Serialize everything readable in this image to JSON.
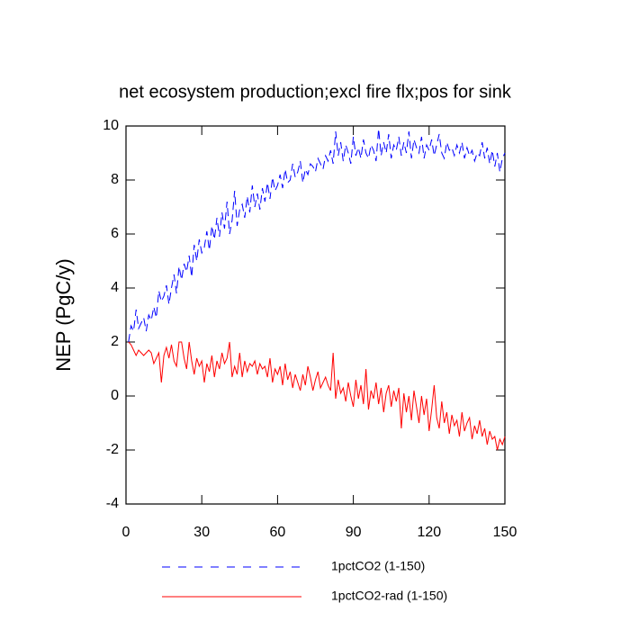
{
  "chart_data": {
    "type": "line",
    "title": "net ecosystem production;excl fire flx;pos for sink",
    "y_label": "NEP  (PgC/y)",
    "xlim": [
      0,
      150
    ],
    "xticks": [
      0,
      30,
      60,
      90,
      120,
      150
    ],
    "ylim": [
      -4,
      10
    ],
    "yticks": [
      -4,
      -2,
      0,
      2,
      4,
      6,
      8,
      10
    ],
    "x": [
      1,
      2,
      3,
      4,
      5,
      6,
      7,
      8,
      9,
      10,
      11,
      12,
      13,
      14,
      15,
      16,
      17,
      18,
      19,
      20,
      21,
      22,
      23,
      24,
      25,
      26,
      27,
      28,
      29,
      30,
      31,
      32,
      33,
      34,
      35,
      36,
      37,
      38,
      39,
      40,
      41,
      42,
      43,
      44,
      45,
      46,
      47,
      48,
      49,
      50,
      51,
      52,
      53,
      54,
      55,
      56,
      57,
      58,
      59,
      60,
      61,
      62,
      63,
      64,
      65,
      66,
      67,
      68,
      69,
      70,
      71,
      72,
      73,
      74,
      75,
      76,
      77,
      78,
      79,
      80,
      81,
      82,
      83,
      84,
      85,
      86,
      87,
      88,
      89,
      90,
      91,
      92,
      93,
      94,
      95,
      96,
      97,
      98,
      99,
      100,
      101,
      102,
      103,
      104,
      105,
      106,
      107,
      108,
      109,
      110,
      111,
      112,
      113,
      114,
      115,
      116,
      117,
      118,
      119,
      120,
      121,
      122,
      123,
      124,
      125,
      126,
      127,
      128,
      129,
      130,
      131,
      132,
      133,
      134,
      135,
      136,
      137,
      138,
      139,
      140,
      141,
      142,
      143,
      144,
      145,
      146,
      147,
      148,
      149,
      150
    ],
    "series": [
      {
        "name": "1pctCO2 (1-150)",
        "color": "#0000ff",
        "line_style": "dashed",
        "values": [
          2.0,
          2.6,
          2.4,
          3.2,
          2.5,
          2.7,
          2.9,
          2.4,
          3.0,
          2.8,
          3.3,
          2.9,
          3.9,
          3.5,
          3.7,
          4.1,
          3.4,
          4.0,
          4.5,
          3.8,
          4.8,
          4.3,
          4.9,
          4.6,
          5.2,
          4.4,
          5.6,
          5.0,
          5.8,
          5.3,
          5.5,
          6.1,
          5.4,
          6.3,
          5.8,
          6.6,
          5.9,
          6.8,
          6.2,
          7.2,
          6.0,
          6.5,
          7.6,
          6.3,
          6.9,
          7.1,
          6.6,
          7.4,
          6.8,
          7.8,
          7.0,
          7.5,
          6.9,
          7.7,
          7.2,
          7.9,
          7.3,
          8.1,
          7.6,
          7.8,
          8.2,
          7.7,
          8.4,
          7.9,
          8.0,
          8.6,
          8.1,
          8.3,
          8.7,
          7.9,
          8.4,
          8.2,
          8.6,
          8.5,
          8.3,
          8.8,
          8.6,
          8.4,
          8.9,
          8.7,
          9.1,
          8.6,
          9.8,
          8.9,
          9.4,
          8.7,
          9.3,
          9.0,
          8.6,
          9.6,
          8.9,
          9.2,
          8.8,
          9.5,
          9.0,
          8.8,
          9.3,
          9.1,
          8.7,
          9.9,
          8.9,
          9.4,
          9.0,
          9.7,
          8.8,
          9.3,
          9.1,
          9.6,
          8.9,
          9.4,
          9.0,
          9.8,
          8.8,
          9.5,
          9.2,
          9.0,
          9.6,
          8.8,
          9.3,
          9.1,
          9.5,
          8.9,
          9.3,
          9.7,
          9.0,
          8.8,
          9.4,
          9.1,
          9.2,
          8.9,
          9.3,
          9.0,
          9.4,
          8.8,
          9.2,
          8.9,
          9.1,
          8.7,
          9.0,
          8.9,
          9.4,
          8.8,
          9.2,
          8.6,
          9.1,
          8.5,
          9.0,
          8.3,
          8.8,
          9.0
        ]
      },
      {
        "name": "1pctCO2-rad (1-150)",
        "color": "#ff0000",
        "line_style": "solid",
        "values": [
          2.0,
          1.9,
          1.7,
          1.5,
          1.7,
          1.6,
          1.5,
          1.6,
          1.7,
          1.6,
          1.2,
          1.4,
          1.6,
          0.5,
          1.5,
          1.8,
          1.4,
          1.9,
          1.3,
          1.1,
          2.0,
          2.0,
          1.4,
          1.0,
          2.0,
          1.3,
          0.8,
          1.4,
          1.1,
          1.3,
          0.5,
          1.2,
          0.9,
          1.5,
          0.7,
          1.3,
          1.0,
          1.6,
          1.2,
          1.4,
          2.0,
          0.7,
          1.1,
          0.8,
          1.6,
          0.7,
          1.3,
          0.9,
          1.2,
          1.1,
          1.3,
          0.8,
          1.2,
          1.0,
          1.1,
          0.7,
          1.4,
          0.5,
          1.0,
          0.8,
          1.1,
          0.4,
          1.2,
          0.6,
          0.9,
          0.3,
          0.8,
          0.5,
          0.2,
          0.8,
          0.4,
          1.1,
          0.7,
          0.2,
          0.6,
          0.9,
          0.3,
          0.5,
          0.7,
          0.4,
          0.2,
          1.6,
          -0.1,
          0.6,
          0.1,
          0.3,
          -0.2,
          0.5,
          0.0,
          -0.4,
          0.6,
          -0.1,
          0.4,
          -0.3,
          1.0,
          -0.5,
          0.2,
          -0.1,
          0.5,
          -0.3,
          0.3,
          -0.6,
          0.1,
          0.4,
          -0.4,
          0.2,
          -0.2,
          0.3,
          -1.2,
          0.1,
          -0.6,
          0.0,
          -0.9,
          0.2,
          -0.4,
          -1.0,
          0.0,
          -0.7,
          -0.1,
          -1.3,
          -0.5,
          0.4,
          -0.8,
          -1.2,
          -0.2,
          -1.0,
          -0.6,
          -1.4,
          -0.7,
          -1.1,
          -0.9,
          -1.5,
          -0.6,
          -1.3,
          -1.0,
          -0.8,
          -1.6,
          -1.1,
          -1.4,
          -0.9,
          -1.5,
          -1.2,
          -1.8,
          -1.3,
          -1.6,
          -1.5,
          -2.0,
          -1.6,
          -1.8,
          -1.5
        ]
      }
    ]
  }
}
